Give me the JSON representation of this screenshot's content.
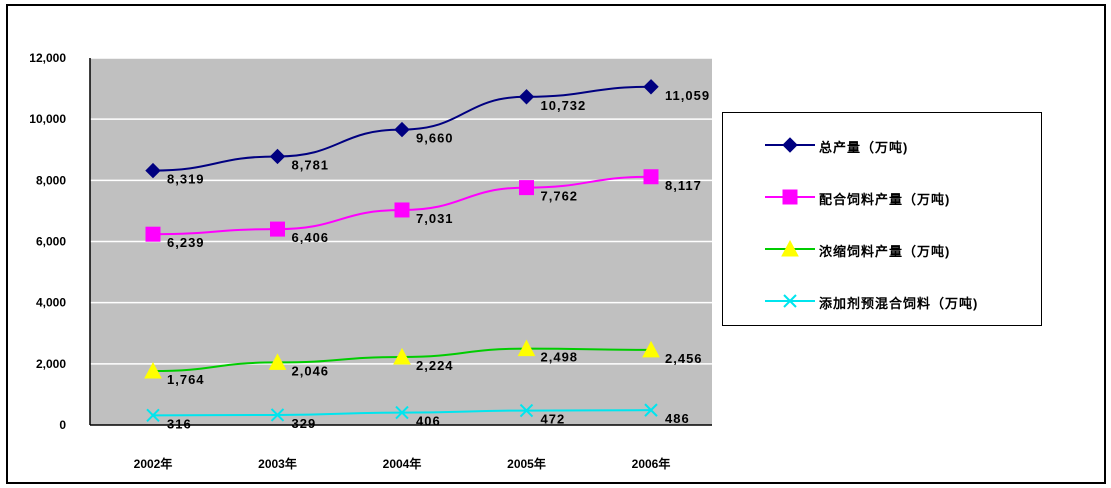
{
  "chart_data": {
    "type": "line",
    "categories": [
      "2002年",
      "2003年",
      "2004年",
      "2005年",
      "2006年"
    ],
    "ylim": [
      0,
      12000
    ],
    "yticks": [
      "0",
      "2,000",
      "4,000",
      "6,000",
      "8,000",
      "10,000",
      "12,000"
    ],
    "ytick_values": [
      0,
      2000,
      4000,
      6000,
      8000,
      10000,
      12000
    ],
    "grid": true,
    "legend_position": "right",
    "plot_background": "#c0c0c0",
    "series": [
      {
        "name": "总产量（万吨)",
        "color": "#000080",
        "marker": "diamond",
        "values": [
          8319,
          8781,
          9660,
          10732,
          11059
        ],
        "labels": [
          "8,319",
          "8,781",
          "9,660",
          "10,732",
          "11,059"
        ]
      },
      {
        "name": "配合饲料产量（万吨)",
        "color": "#ff00ff",
        "marker": "square",
        "values": [
          6239,
          6406,
          7031,
          7762,
          8117
        ],
        "labels": [
          "6,239",
          "6,406",
          "7,031",
          "7,762",
          "8,117"
        ]
      },
      {
        "name": "浓缩饲料产量（万吨)",
        "color": "#00cc00",
        "marker": "triangle",
        "marker_color": "#ffff00",
        "values": [
          1764,
          2046,
          2224,
          2498,
          2456
        ],
        "labels": [
          "1,764",
          "2,046",
          "2,224",
          "2,498",
          "2,456"
        ]
      },
      {
        "name": "添加剂预混合饲料（万吨)",
        "color": "#00e5ee",
        "marker": "x",
        "values": [
          316,
          329,
          406,
          472,
          486
        ],
        "labels": [
          "316",
          "329",
          "406",
          "472",
          "486"
        ]
      }
    ]
  }
}
